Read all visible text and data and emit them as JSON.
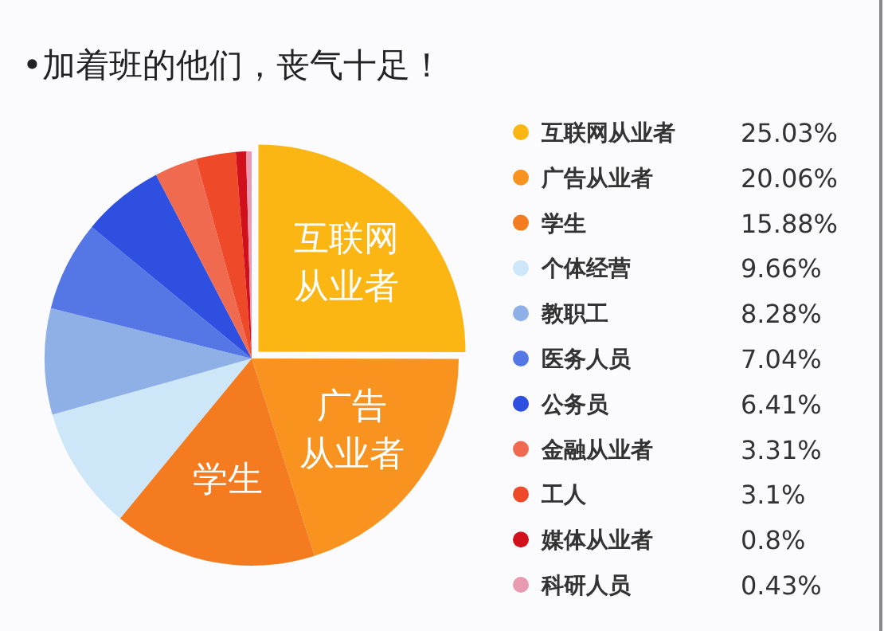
{
  "chart_data": {
    "type": "pie",
    "title": "•加着班的他们，丧气十足！",
    "categories": [
      "互联网从业者",
      "广告从业者",
      "学生",
      "个体经营",
      "教职工",
      "医务人员",
      "公务员",
      "金融从业者",
      "工人",
      "媒体从业者",
      "科研人员"
    ],
    "values": [
      25.03,
      20.06,
      15.88,
      9.66,
      8.28,
      7.04,
      6.41,
      3.31,
      3.1,
      0.8,
      0.43
    ],
    "value_labels": [
      "25.03%",
      "20.06%",
      "15.88%",
      "9.66%",
      "8.28%",
      "7.04%",
      "6.41%",
      "3.31%",
      "3.1%",
      "0.8%",
      "0.43%"
    ],
    "colors": [
      "#fbb614",
      "#f7931e",
      "#f47b20",
      "#cde6f8",
      "#8fb0e6",
      "#5577e6",
      "#2e4fe0",
      "#f06a50",
      "#ee4a2a",
      "#d0101a",
      "#e89ab0"
    ],
    "annotations": [
      {
        "text": "互联网",
        "x": "互联网从业者"
      },
      {
        "text": "从业者",
        "x": "互联网从业者"
      },
      {
        "text": "广告",
        "x": "广告从业者"
      },
      {
        "text": "从业者",
        "x": "广告从业者"
      },
      {
        "text": "学生",
        "x": "学生"
      }
    ],
    "legend": "right"
  }
}
